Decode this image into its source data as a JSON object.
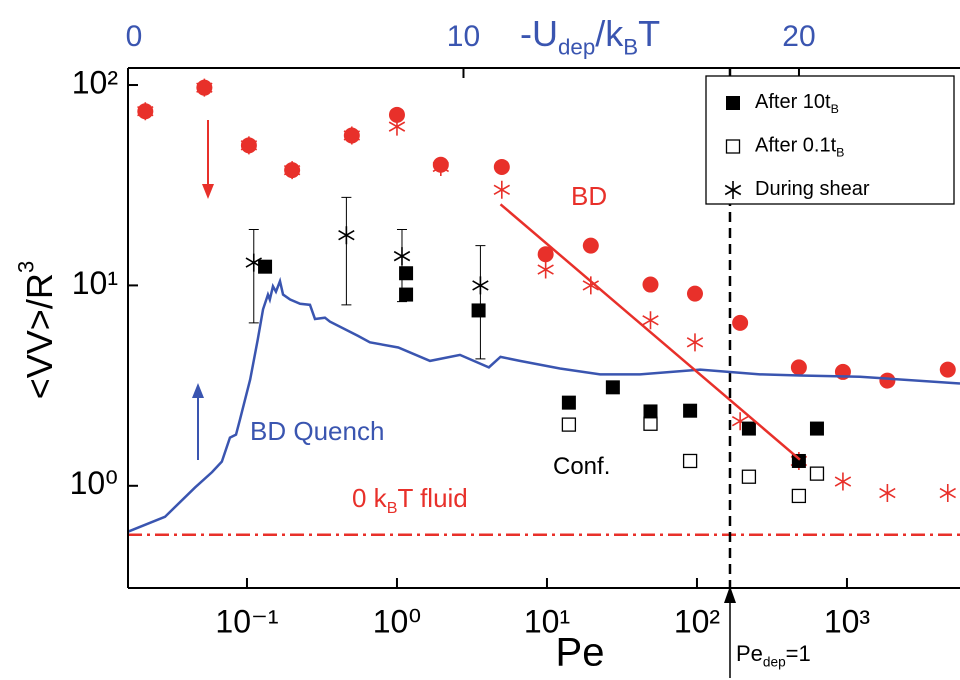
{
  "chart_data": {
    "type": "scatter",
    "x_label": "Pe",
    "y_label": [
      "<VV>/R",
      "3"
    ],
    "x2_label": [
      "-U",
      "dep",
      "/k",
      "B",
      "T"
    ],
    "xscale": "log",
    "yscale": "log",
    "xlim": [
      0.0161,
      5670
    ],
    "ylim": [
      0.309,
      121.6
    ],
    "x2lim": [
      0,
      24.8
    ],
    "xticks": [
      {
        "value": 0.1,
        "label": "10⁻¹"
      },
      {
        "value": 1,
        "label": "10⁰"
      },
      {
        "value": 10,
        "label": "10¹"
      },
      {
        "value": 100,
        "label": "10²"
      },
      {
        "value": 1000,
        "label": "10³"
      }
    ],
    "yticks": [
      {
        "value": 1,
        "label": "10⁰"
      },
      {
        "value": 10,
        "label": "10¹"
      },
      {
        "value": 100,
        "label": "10²"
      }
    ],
    "x2ticks": [
      0,
      10,
      20
    ],
    "x2color": "#3a55b0",
    "series": [
      {
        "type": "scatter",
        "marker": "circle",
        "color": "#e8302a",
        "x": [
          0.021,
          0.052,
          0.103,
          0.2,
          0.5,
          1.0,
          1.96,
          5.0,
          9.8,
          19.6,
          49,
          97,
          194,
          478,
          940,
          1860,
          4700
        ],
        "values": [
          74,
          97,
          50,
          37.6,
          56,
          71,
          40,
          39,
          14.3,
          15.8,
          10.1,
          9.1,
          6.5,
          3.9,
          3.7,
          3.35,
          3.8
        ]
      },
      {
        "type": "scatter",
        "marker": "asterisk",
        "color": "#e8302a",
        "x": [
          0.021,
          0.052,
          0.103,
          0.2,
          0.5,
          1.0,
          1.96,
          5.0,
          9.8,
          19.6,
          49,
          97,
          194,
          478,
          940,
          1860,
          4700
        ],
        "values": [
          74,
          97,
          50,
          37.6,
          56,
          62,
          39,
          30,
          12,
          10.0,
          6.7,
          5.2,
          2.1,
          1.33,
          1.05,
          0.92,
          0.92
        ]
      },
      {
        "type": "scatter",
        "marker": "square",
        "color": "#000000",
        "name": [
          "After 10t",
          "B"
        ],
        "x": [
          0.132,
          1.15,
          1.15,
          3.5,
          14,
          27.5,
          49,
          90,
          222,
          478,
          631
        ],
        "values": [
          12.4,
          11.5,
          9.0,
          7.5,
          2.6,
          3.1,
          2.35,
          2.37,
          1.93,
          1.33,
          1.93
        ]
      },
      {
        "type": "scatter",
        "marker": "open-square",
        "color": "#000000",
        "name": [
          "After 0.1t",
          "B"
        ],
        "x": [
          14,
          49,
          90,
          222,
          478,
          631
        ],
        "values": [
          2.02,
          2.04,
          1.33,
          1.11,
          0.89,
          1.15
        ]
      },
      {
        "type": "scatter",
        "marker": "asterisk",
        "color": "#000000",
        "name": [
          "During shear"
        ],
        "x": [
          0.111,
          0.46,
          1.08,
          3.6
        ],
        "values": [
          13,
          17.8,
          14,
          10
        ],
        "lower": [
          6.5,
          8.0,
          8.3,
          4.3
        ],
        "upper": [
          19,
          27.5,
          19,
          15.8
        ]
      },
      {
        "type": "line",
        "color": "#3a55b0",
        "x": [
          0.0161,
          0.0284,
          0.045,
          0.0585,
          0.068,
          0.077,
          0.0845,
          0.0898,
          0.105,
          0.118,
          0.128,
          0.138,
          0.142,
          0.149,
          0.156,
          0.166,
          0.174,
          0.194,
          0.226,
          0.263,
          0.284,
          0.331,
          0.357,
          0.55,
          0.66,
          1.02,
          1.66,
          2.63,
          4.1,
          4.9,
          6.6,
          12.2,
          22.6,
          41.7,
          105,
          263,
          486,
          1220,
          5670
        ],
        "values": [
          0.59,
          0.7,
          0.98,
          1.17,
          1.32,
          1.74,
          1.8,
          2.14,
          3.39,
          5.37,
          7.6,
          9.0,
          8.5,
          9.9,
          9.3,
          10.5,
          9.0,
          8.5,
          8.1,
          8.0,
          6.8,
          6.9,
          6.6,
          5.6,
          5.2,
          4.9,
          4.2,
          4.5,
          3.9,
          4.4,
          4.2,
          3.85,
          3.6,
          3.6,
          3.8,
          3.6,
          3.55,
          3.5,
          3.24
        ]
      },
      {
        "type": "line",
        "color": "#e8302a",
        "x": [
          4.9,
          486
        ],
        "values": [
          25.4,
          1.35
        ]
      }
    ],
    "reference_lines": [
      {
        "axis": "y",
        "value": 0.57,
        "color": "#e8302a",
        "style": "dashdot"
      },
      {
        "axis": "x",
        "value": 166,
        "color": "#000000",
        "style": "dashed"
      }
    ],
    "annotations": [
      {
        "text": [
          "BD"
        ],
        "color": "#e8302a"
      },
      {
        "text": [
          "BD Quench"
        ],
        "color": "#3a55b0"
      },
      {
        "text": [
          "Conf."
        ],
        "color": "#000000"
      },
      {
        "text": [
          "0 k",
          "B",
          "T fluid"
        ],
        "color": "#e8302a"
      },
      {
        "text": [
          "Pe",
          "dep",
          "=1"
        ],
        "color": "#000000"
      }
    ]
  }
}
